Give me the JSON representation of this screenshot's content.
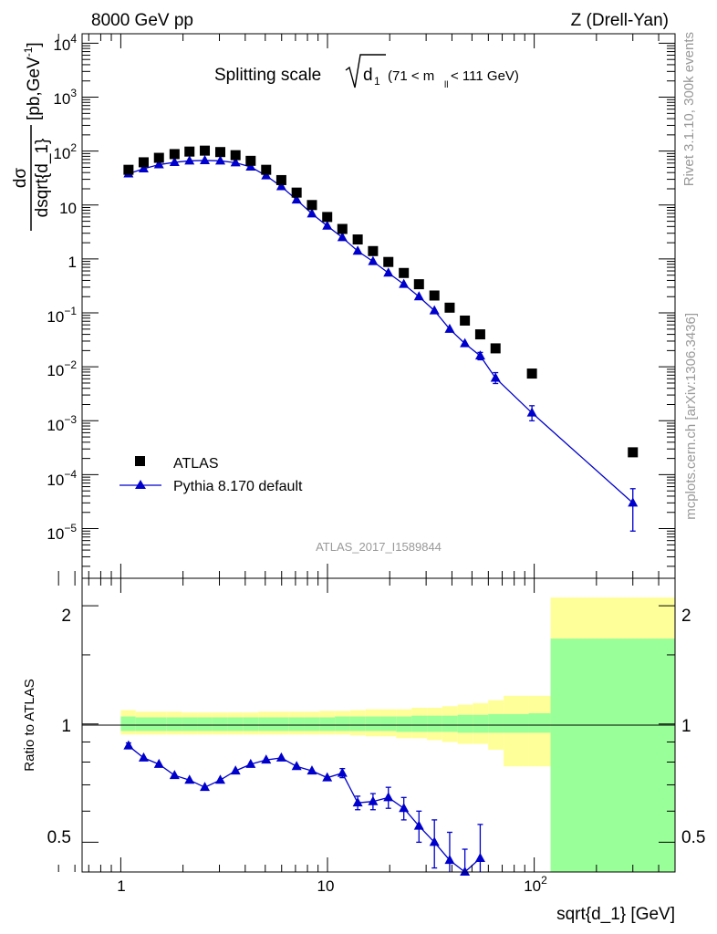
{
  "header": {
    "left": "8000 GeV pp",
    "right": "Z (Drell-Yan)"
  },
  "side_labels": {
    "rivet": "Rivet 3.1.10,  300k events",
    "mcplots": "mcplots.cern.ch [arXiv:1306.3436]"
  },
  "colors": {
    "data": "#000000",
    "mc": "#0000cc",
    "band_inner": "#99ff99",
    "band_outer": "#ffff99",
    "side_text": "#999999",
    "watermark": "#999999"
  },
  "main_plot": {
    "title_main": "Splitting scale",
    "title_sym": "d",
    "title_sub": "1",
    "title_range_a": "(71 < m",
    "title_range_sub": "ll",
    "title_range_b": " < 111 GeV)",
    "ylabel_num": "dσ",
    "ylabel_den": "dsqrt{d_1}",
    "ylabel_units_a": "[pb,GeV",
    "ylabel_units_sup": "-1",
    "ylabel_units_b": "]",
    "watermark": "ATLAS_2017_I1589844",
    "legend": [
      {
        "label": "ATLAS"
      },
      {
        "label": "Pythia 8.170 default"
      }
    ],
    "yticks": [
      {
        "base": "10",
        "exp": "4"
      },
      {
        "base": "10",
        "exp": "3"
      },
      {
        "base": "10",
        "exp": "2"
      },
      {
        "base": "10",
        "exp": ""
      },
      {
        "base": "1",
        "exp": ""
      },
      {
        "base": "10",
        "exp": "−1"
      },
      {
        "base": "10",
        "exp": "−2"
      },
      {
        "base": "10",
        "exp": "−3"
      },
      {
        "base": "10",
        "exp": "−4"
      },
      {
        "base": "10",
        "exp": "−5"
      }
    ]
  },
  "ratio_plot": {
    "ylabel": "Ratio to ATLAS",
    "yticks": [
      "2",
      "1",
      "0.5"
    ],
    "yticks_right": [
      "2",
      "1",
      "0.5"
    ]
  },
  "xaxis": {
    "label": "sqrt{d_1} [GeV]",
    "ticks": [
      {
        "base": "1",
        "exp": ""
      },
      {
        "base": "10",
        "exp": ""
      },
      {
        "base": "10",
        "exp": "2"
      }
    ]
  },
  "chart_data": [
    {
      "type": "scatter",
      "title": "Splitting scale sqrt(d1) (71 < mll < 111 GeV)",
      "xlabel": "sqrt{d_1} [GeV]",
      "ylabel": "dσ/dsqrt{d_1} [pb,GeV^-1]",
      "xscale": "log",
      "yscale": "log",
      "xlim": [
        0.65,
        480
      ],
      "ylim": [
        1.2e-06,
        15000
      ],
      "series": [
        {
          "name": "ATLAS",
          "marker": "square",
          "x": [
            1.09,
            1.29,
            1.53,
            1.82,
            2.15,
            2.55,
            3.03,
            3.59,
            4.25,
            5.05,
            5.98,
            7.09,
            8.41,
            9.97,
            11.8,
            14.0,
            16.6,
            19.7,
            23.4,
            27.7,
            32.9,
            39.0,
            46.2,
            54.8,
            65.0,
            97.5,
            300.0
          ],
          "y": [
            45,
            62,
            75,
            88,
            98,
            102,
            96,
            84,
            66,
            45,
            29,
            17,
            10,
            6,
            3.6,
            2.3,
            1.4,
            0.88,
            0.55,
            0.34,
            0.21,
            0.125,
            0.072,
            0.04,
            0.022,
            0.0075,
            0.00026
          ]
        },
        {
          "name": "Pythia 8.170 default",
          "marker": "triangle",
          "x": [
            1.09,
            1.29,
            1.53,
            1.82,
            2.15,
            2.55,
            3.03,
            3.59,
            4.25,
            5.05,
            5.98,
            7.09,
            8.41,
            9.97,
            11.8,
            14.0,
            16.6,
            19.7,
            23.4,
            27.7,
            32.9,
            39.0,
            46.2,
            54.8,
            65.0,
            97.5,
            300.0
          ],
          "y": [
            38,
            47,
            56,
            62,
            66,
            67,
            66,
            61,
            51,
            35,
            22,
            12.5,
            6.9,
            4.1,
            2.5,
            1.4,
            0.9,
            0.55,
            0.34,
            0.2,
            0.11,
            0.05,
            0.027,
            0.016,
            0.0062,
            0.0014,
            3e-05
          ],
          "err_low": [
            0,
            0,
            0,
            0,
            0,
            0,
            0,
            0,
            0,
            0,
            0,
            0,
            0,
            0,
            0,
            0,
            0,
            0,
            0,
            0,
            0,
            0,
            0,
            0.0025,
            0.0013,
            0.0004,
            2.1e-05
          ],
          "err_high": [
            0,
            0,
            0,
            0,
            0,
            0,
            0,
            0,
            0,
            0,
            0,
            0,
            0,
            0,
            0,
            0,
            0,
            0,
            0,
            0,
            0,
            0,
            0,
            0.0025,
            0.0016,
            0.0005,
            2.5e-05
          ]
        }
      ]
    },
    {
      "type": "line",
      "title": "Ratio to ATLAS",
      "ylabel": "Ratio to ATLAS",
      "xlabel": "sqrt{d_1} [GeV]",
      "xscale": "log",
      "yscale": "log",
      "xlim": [
        0.65,
        480
      ],
      "ylim": [
        0.42,
        2.35
      ],
      "bands": {
        "edges": [
          1.0,
          1.18,
          1.4,
          1.66,
          1.97,
          2.34,
          2.77,
          3.29,
          3.9,
          4.63,
          5.49,
          6.51,
          7.72,
          9.16,
          10.86,
          12.88,
          15.28,
          18.13,
          21.5,
          25.5,
          30.3,
          35.9,
          42.6,
          50.5,
          59.9,
          71.1,
          94.0,
          120.0,
          480.0
        ],
        "outer_lo": [
          0.94,
          0.94,
          0.94,
          0.94,
          0.94,
          0.94,
          0.94,
          0.94,
          0.94,
          0.94,
          0.94,
          0.94,
          0.94,
          0.94,
          0.94,
          0.935,
          0.93,
          0.93,
          0.92,
          0.92,
          0.91,
          0.9,
          0.89,
          0.89,
          0.86,
          0.78,
          0.78,
          0.42
        ],
        "outer_hi": [
          1.085,
          1.075,
          1.075,
          1.075,
          1.07,
          1.07,
          1.07,
          1.07,
          1.07,
          1.075,
          1.075,
          1.075,
          1.075,
          1.08,
          1.08,
          1.085,
          1.09,
          1.09,
          1.09,
          1.1,
          1.1,
          1.11,
          1.12,
          1.13,
          1.15,
          1.18,
          1.18,
          2.1
        ],
        "inner_lo": [
          0.96,
          0.96,
          0.96,
          0.96,
          0.96,
          0.96,
          0.96,
          0.96,
          0.96,
          0.96,
          0.96,
          0.96,
          0.96,
          0.96,
          0.96,
          0.96,
          0.96,
          0.96,
          0.955,
          0.955,
          0.955,
          0.955,
          0.95,
          0.95,
          0.95,
          0.95,
          0.95,
          0.37
        ],
        "inner_hi": [
          1.045,
          1.04,
          1.04,
          1.04,
          1.04,
          1.04,
          1.04,
          1.04,
          1.04,
          1.04,
          1.04,
          1.04,
          1.04,
          1.04,
          1.045,
          1.045,
          1.045,
          1.045,
          1.045,
          1.05,
          1.05,
          1.05,
          1.055,
          1.055,
          1.06,
          1.06,
          1.065,
          1.65
        ]
      },
      "series": [
        {
          "name": "Pythia 8.170 / ATLAS",
          "marker": "triangle",
          "x": [
            1.09,
            1.29,
            1.53,
            1.82,
            2.15,
            2.55,
            3.03,
            3.59,
            4.25,
            5.05,
            5.98,
            7.09,
            8.41,
            9.97,
            11.8,
            14.0,
            16.6,
            19.7,
            23.4,
            27.7,
            32.9,
            39.0,
            46.2,
            54.8
          ],
          "y": [
            0.88,
            0.82,
            0.79,
            0.74,
            0.72,
            0.69,
            0.72,
            0.76,
            0.79,
            0.81,
            0.82,
            0.78,
            0.76,
            0.73,
            0.75,
            0.63,
            0.635,
            0.65,
            0.61,
            0.55,
            0.5,
            0.45,
            0.4,
            0.455
          ],
          "err": [
            0.015,
            0.01,
            0.01,
            0.01,
            0.01,
            0.01,
            0.01,
            0.01,
            0.01,
            0.01,
            0.01,
            0.01,
            0.01,
            0.01,
            0.02,
            0.025,
            0.03,
            0.04,
            0.04,
            0.05,
            0.07,
            0.08,
            0.08,
            0.1
          ]
        }
      ]
    }
  ]
}
